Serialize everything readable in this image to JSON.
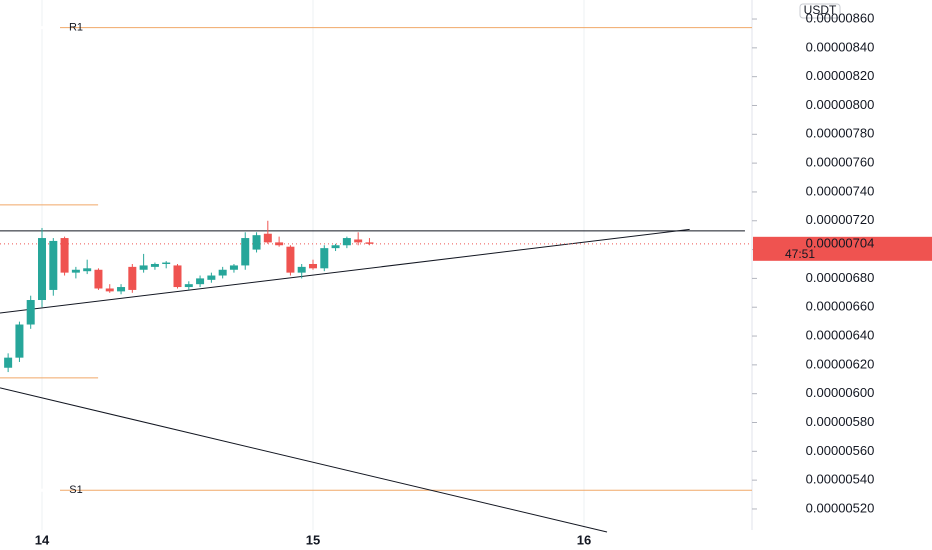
{
  "chart_data": {
    "type": "candlestick",
    "currency": "USDT",
    "up_color": "#26a69a",
    "down_color": "#ef5350",
    "grid": "x",
    "xlim": [
      13.845,
      16.62
    ],
    "ylim": [
      5.054e-06,
      8.732e-06
    ],
    "xticks": [
      14,
      15,
      16
    ],
    "yticks": [
      {
        "value": 5.2e-06,
        "label": "0.00000520"
      },
      {
        "value": 5.4e-06,
        "label": "0.00000540"
      },
      {
        "value": 5.6e-06,
        "label": "0.00000560"
      },
      {
        "value": 5.8e-06,
        "label": "0.00000580"
      },
      {
        "value": 6e-06,
        "label": "0.00000600"
      },
      {
        "value": 6.2e-06,
        "label": "0.00000620"
      },
      {
        "value": 6.4e-06,
        "label": "0.00000640"
      },
      {
        "value": 6.6e-06,
        "label": "0.00000660"
      },
      {
        "value": 6.8e-06,
        "label": "0.00000680"
      },
      {
        "value": 7e-06,
        "label": "0.00000700"
      },
      {
        "value": 7.2e-06,
        "label": "0.00000720"
      },
      {
        "value": 7.4e-06,
        "label": "0.00000740"
      },
      {
        "value": 7.6e-06,
        "label": "0.00000760"
      },
      {
        "value": 7.8e-06,
        "label": "0.00000780"
      },
      {
        "value": 8e-06,
        "label": "0.00000800"
      },
      {
        "value": 8.2e-06,
        "label": "0.00000820"
      },
      {
        "value": 8.4e-06,
        "label": "0.00000840"
      },
      {
        "value": 8.6e-06,
        "label": "0.00000860"
      }
    ],
    "x": [
      13.875,
      13.9167,
      13.9583,
      14,
      14.0417,
      14.0833,
      14.125,
      14.1667,
      14.2083,
      14.25,
      14.2917,
      14.3333,
      14.375,
      14.4167,
      14.4583,
      14.5,
      14.5417,
      14.5833,
      14.625,
      14.6667,
      14.7083,
      14.75,
      14.7917,
      14.8333,
      14.875,
      14.9167,
      14.9583,
      15,
      15.0417,
      15.0833,
      15.125,
      15.1667,
      15.2083
    ],
    "open": [
      6.18e-06,
      6.25e-06,
      6.48e-06,
      6.65e-06,
      6.72e-06,
      7.08e-06,
      6.84e-06,
      6.85e-06,
      6.86e-06,
      6.73e-06,
      6.71e-06,
      6.88e-06,
      6.86e-06,
      6.88e-06,
      6.9e-06,
      6.89e-06,
      6.74e-06,
      6.76e-06,
      6.79e-06,
      6.82e-06,
      6.86e-06,
      6.89e-06,
      7e-06,
      7.11e-06,
      7.05e-06,
      7.02e-06,
      6.84e-06,
      6.9e-06,
      6.87e-06,
      7.01e-06,
      7.03e-06,
      7.07e-06,
      7.05e-06
    ],
    "high": [
      6.28e-06,
      6.5e-06,
      6.68e-06,
      7.15e-06,
      7.08e-06,
      7.09e-06,
      6.88e-06,
      6.93e-06,
      6.87e-06,
      6.76e-06,
      6.76e-06,
      6.9e-06,
      6.97e-06,
      6.91e-06,
      6.92e-06,
      6.9e-06,
      6.78e-06,
      6.82e-06,
      6.84e-06,
      6.88e-06,
      6.9e-06,
      7.12e-06,
      7.12e-06,
      7.2e-06,
      7.09e-06,
      7.03e-06,
      6.9e-06,
      6.93e-06,
      7.03e-06,
      7.04e-06,
      7.09e-06,
      7.12e-06,
      7.08e-06
    ],
    "low": [
      6.15e-06,
      6.22e-06,
      6.45e-06,
      6.6e-06,
      6.68e-06,
      6.82e-06,
      6.8e-06,
      6.83e-06,
      6.72e-06,
      6.7e-06,
      6.69e-06,
      6.7e-06,
      6.84e-06,
      6.86e-06,
      6.87e-06,
      6.73e-06,
      6.72e-06,
      6.74e-06,
      6.77e-06,
      6.8e-06,
      6.84e-06,
      6.86e-06,
      6.98e-06,
      7.04e-06,
      7.02e-06,
      6.82e-06,
      6.8e-06,
      6.86e-06,
      6.85e-06,
      6.99e-06,
      7.01e-06,
      7.03e-06,
      7.03e-06
    ],
    "close": [
      6.25e-06,
      6.48e-06,
      6.65e-06,
      7.08e-06,
      7.06e-06,
      6.84e-06,
      6.86e-06,
      6.87e-06,
      6.73e-06,
      6.71e-06,
      6.74e-06,
      6.72e-06,
      6.89e-06,
      6.9e-06,
      6.91e-06,
      6.74e-06,
      6.76e-06,
      6.8e-06,
      6.82e-06,
      6.86e-06,
      6.89e-06,
      7.08e-06,
      7.1e-06,
      7.05e-06,
      7.03e-06,
      6.84e-06,
      6.88e-06,
      6.87e-06,
      7.01e-06,
      7.03e-06,
      7.08e-06,
      7.05e-06,
      7.04e-06
    ],
    "last_price": {
      "value": 7.04e-06,
      "label": "0.00000704"
    },
    "countdown": "47:51",
    "levels": [
      {
        "label": "R1",
        "value": 8.54e-06,
        "x": [
          13.845,
          16.62
        ],
        "color": "#f0a868"
      },
      {
        "label": "S1",
        "value": 5.33e-06,
        "x": [
          13.845,
          16.62
        ],
        "color": "#f0a868"
      },
      {
        "value": 7.31e-06,
        "x": [
          13.845,
          14.207
        ],
        "color": "#f0a868"
      },
      {
        "value": 6.11e-06,
        "x": [
          13.845,
          14.207
        ],
        "color": "#f0a868"
      },
      {
        "value": 7.13e-06,
        "x": [
          13.845,
          16.594
        ],
        "color": "#131722"
      }
    ],
    "trendlines": [
      {
        "x": [
          13.845,
          16.39
        ],
        "y": [
          6.56e-06,
          7.14e-06
        ],
        "color": "#131722"
      },
      {
        "x": [
          13.845,
          16.085
        ],
        "y": [
          6.04e-06,
          5.04e-06
        ],
        "color": "#131722"
      }
    ]
  }
}
